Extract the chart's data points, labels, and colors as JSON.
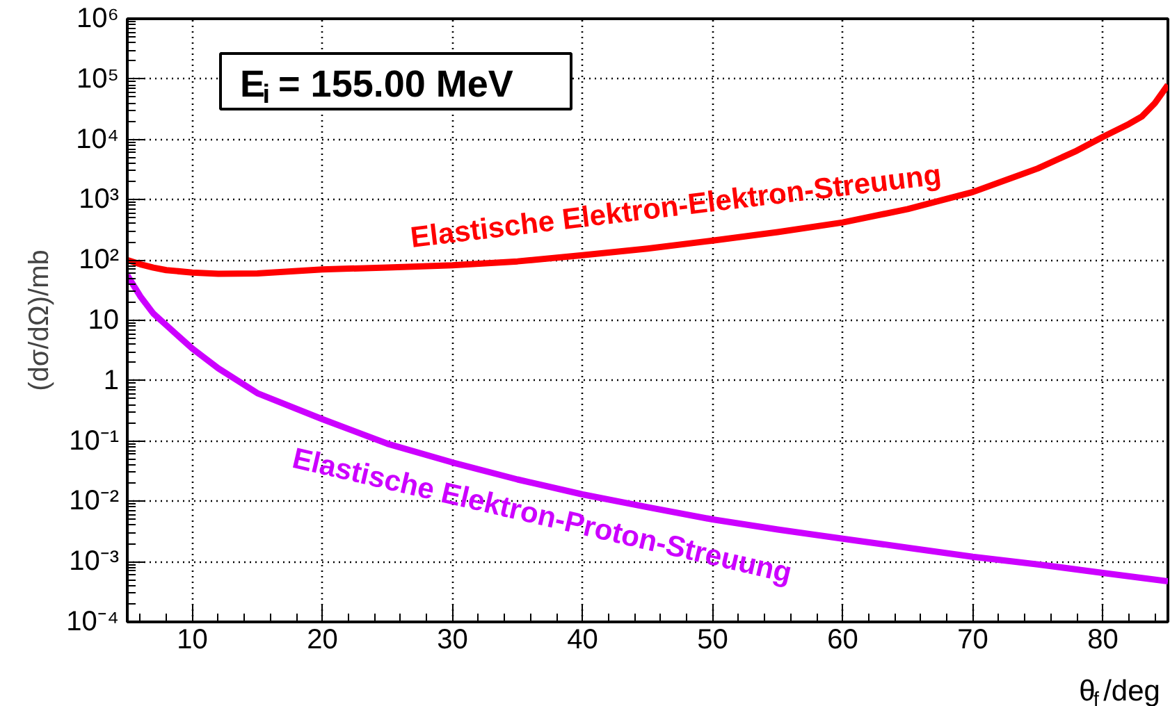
{
  "chart_data": {
    "type": "line",
    "xlabel": "θ$_{f}$/deg",
    "ylabel": "(dσ/dΩ)/mb",
    "annotations": [
      "E$_{i}$ = 155.00 MeV"
    ],
    "series": [
      {
        "name": "Elastische Elektron-Elektron-Streuung",
        "color": "#ff0000",
        "x": [
          5,
          6,
          7,
          8,
          10,
          12,
          15,
          20,
          25,
          30,
          35,
          40,
          45,
          50,
          55,
          60,
          65,
          70,
          75,
          78,
          80,
          82,
          83,
          84,
          85
        ],
        "values": [
          100,
          85,
          75,
          68,
          62,
          59,
          60,
          70,
          75,
          82,
          95,
          120,
          155,
          210,
          290,
          420,
          700,
          1340,
          3300,
          6500,
          11000,
          18000,
          24000,
          40000,
          80000
        ]
      },
      {
        "name": "Elastische Elektron-Proton-Streuung",
        "color": "#cc00ff",
        "x": [
          5,
          6,
          7,
          8,
          9,
          10,
          12,
          15,
          20,
          25,
          30,
          35,
          40,
          45,
          50,
          55,
          60,
          65,
          70,
          75,
          80,
          85
        ],
        "values": [
          56,
          25,
          13,
          8.3,
          5.3,
          3.4,
          1.6,
          0.62,
          0.23,
          0.09,
          0.044,
          0.023,
          0.013,
          0.008,
          0.005,
          0.0034,
          0.0024,
          0.0017,
          0.0012,
          0.0009,
          0.00065,
          0.00047
        ]
      }
    ],
    "xlim": [
      5,
      85
    ],
    "xticks": [
      10,
      20,
      30,
      40,
      50,
      60,
      70,
      80
    ],
    "ylim": [
      0.0001,
      1000000
    ],
    "yticks": [
      {
        "value": 0.0001,
        "label": "10⁻⁴"
      },
      {
        "value": 0.001,
        "label": "10⁻³"
      },
      {
        "value": 0.01,
        "label": "10⁻²"
      },
      {
        "value": 0.1,
        "label": "10⁻¹"
      },
      1,
      10,
      {
        "value": 100,
        "label": "10²"
      },
      {
        "value": 1000,
        "label": "10³"
      },
      {
        "value": 10000,
        "label": "10⁴"
      },
      {
        "value": 100000,
        "label": "10⁵"
      },
      {
        "value": 1000000,
        "label": "10⁶"
      }
    ],
    "log": "y",
    "grid": true,
    "marker": "none",
    "line_style": "solid"
  }
}
